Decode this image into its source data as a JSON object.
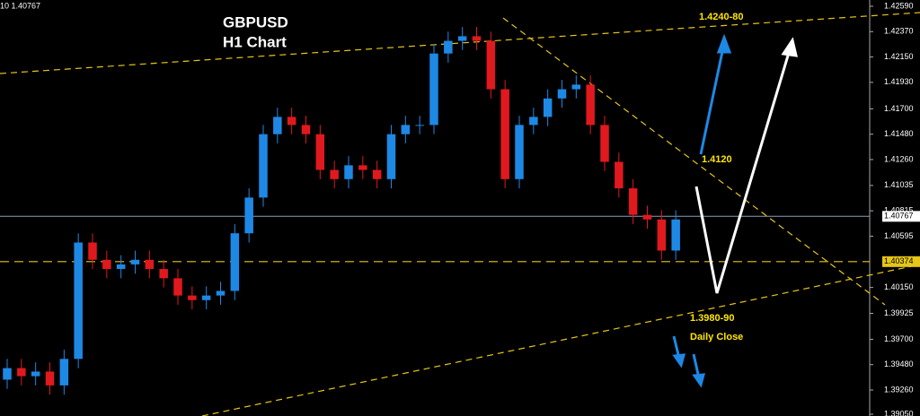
{
  "chart_data": {
    "type": "candlestick",
    "title": "GBPUSD",
    "subtitle": "H1 Chart",
    "header": "10 1.40767",
    "annotations": [
      "1.4240-80",
      "1.4120",
      "1.3980-90",
      "Daily Close"
    ],
    "up_color": "#1e88e5",
    "down_color": "#e0191e",
    "open": [
      1.3935,
      1.3945,
      1.3938,
      1.3942,
      1.393,
      1.3953,
      1.4054,
      1.4039,
      1.4031,
      1.4035,
      1.4039,
      1.4031,
      1.4023,
      1.4008,
      1.4004,
      1.4008,
      1.4012,
      1.4062,
      1.4093,
      1.4148,
      1.4163,
      1.4156,
      1.4148,
      1.4117,
      1.4109,
      1.4121,
      1.4117,
      1.4109,
      1.4148,
      1.4156,
      1.4156,
      1.4218,
      1.4229,
      1.4233,
      1.4229,
      1.4187,
      1.4109,
      1.4156,
      1.4163,
      1.4179,
      1.4187,
      1.4191,
      1.4156,
      1.4124,
      1.4101,
      1.4078,
      1.4074,
      1.4047
    ],
    "high": [
      1.3953,
      1.3953,
      1.395,
      1.395,
      1.3961,
      1.4062,
      1.4062,
      1.4047,
      1.4043,
      1.4047,
      1.4047,
      1.4039,
      1.4031,
      1.4016,
      1.4016,
      1.402,
      1.407,
      1.4101,
      1.4156,
      1.4171,
      1.4171,
      1.4164,
      1.4156,
      1.4125,
      1.4129,
      1.4129,
      1.4125,
      1.4156,
      1.4164,
      1.4164,
      1.4226,
      1.4237,
      1.4241,
      1.4241,
      1.4237,
      1.4195,
      1.4164,
      1.4171,
      1.4187,
      1.4195,
      1.4199,
      1.4199,
      1.4164,
      1.4132,
      1.4109,
      1.4086,
      1.4082,
      1.4082
    ],
    "low": [
      1.3927,
      1.393,
      1.393,
      1.3922,
      1.3922,
      1.3945,
      1.4031,
      1.4023,
      1.4023,
      1.4027,
      1.4023,
      1.4015,
      1.4,
      1.3996,
      1.3996,
      1.4,
      1.4004,
      1.4054,
      1.4085,
      1.414,
      1.4148,
      1.414,
      1.4109,
      1.4101,
      1.4101,
      1.4109,
      1.4101,
      1.4101,
      1.414,
      1.4148,
      1.4148,
      1.421,
      1.4221,
      1.4221,
      1.4179,
      1.4101,
      1.4101,
      1.4148,
      1.4155,
      1.4171,
      1.4179,
      1.4148,
      1.4116,
      1.4093,
      1.407,
      1.4066,
      1.4039,
      1.4039
    ],
    "close": [
      1.3945,
      1.3938,
      1.3942,
      1.393,
      1.3953,
      1.4054,
      1.4039,
      1.4031,
      1.4035,
      1.4039,
      1.4031,
      1.4023,
      1.4008,
      1.4004,
      1.4008,
      1.4012,
      1.4062,
      1.4093,
      1.4148,
      1.4163,
      1.4156,
      1.4148,
      1.4117,
      1.4109,
      1.4121,
      1.4117,
      1.4109,
      1.4148,
      1.4156,
      1.4156,
      1.4218,
      1.4229,
      1.4233,
      1.4229,
      1.4187,
      1.4109,
      1.4156,
      1.4163,
      1.4179,
      1.4187,
      1.4191,
      1.4156,
      1.4124,
      1.4101,
      1.4078,
      1.4074,
      1.4047,
      1.4074
    ],
    "ylim": [
      1.3905,
      1.4259
    ],
    "yticks": [
      {
        "value": 1.4259,
        "label": "1.42590"
      },
      {
        "value": 1.4237,
        "label": "1.42370"
      },
      {
        "value": 1.4215,
        "label": "1.42150"
      },
      {
        "value": 1.4193,
        "label": "1.41930"
      },
      {
        "value": 1.417,
        "label": "1.41700"
      },
      {
        "value": 1.4148,
        "label": "1.41480"
      },
      {
        "value": 1.4126,
        "label": "1.41260"
      },
      1.41035,
      1.40815,
      1.40595,
      {
        "value": 1.4015,
        "label": "1.40150"
      },
      1.39925,
      {
        "value": 1.397,
        "label": "1.39700"
      },
      {
        "value": 1.3948,
        "label": "1.39480"
      },
      {
        "value": 1.3926,
        "label": "1.39260"
      },
      {
        "value": 1.3905,
        "label": "1.39050"
      }
    ],
    "price_lines": [
      1.40767,
      1.40374
    ]
  }
}
